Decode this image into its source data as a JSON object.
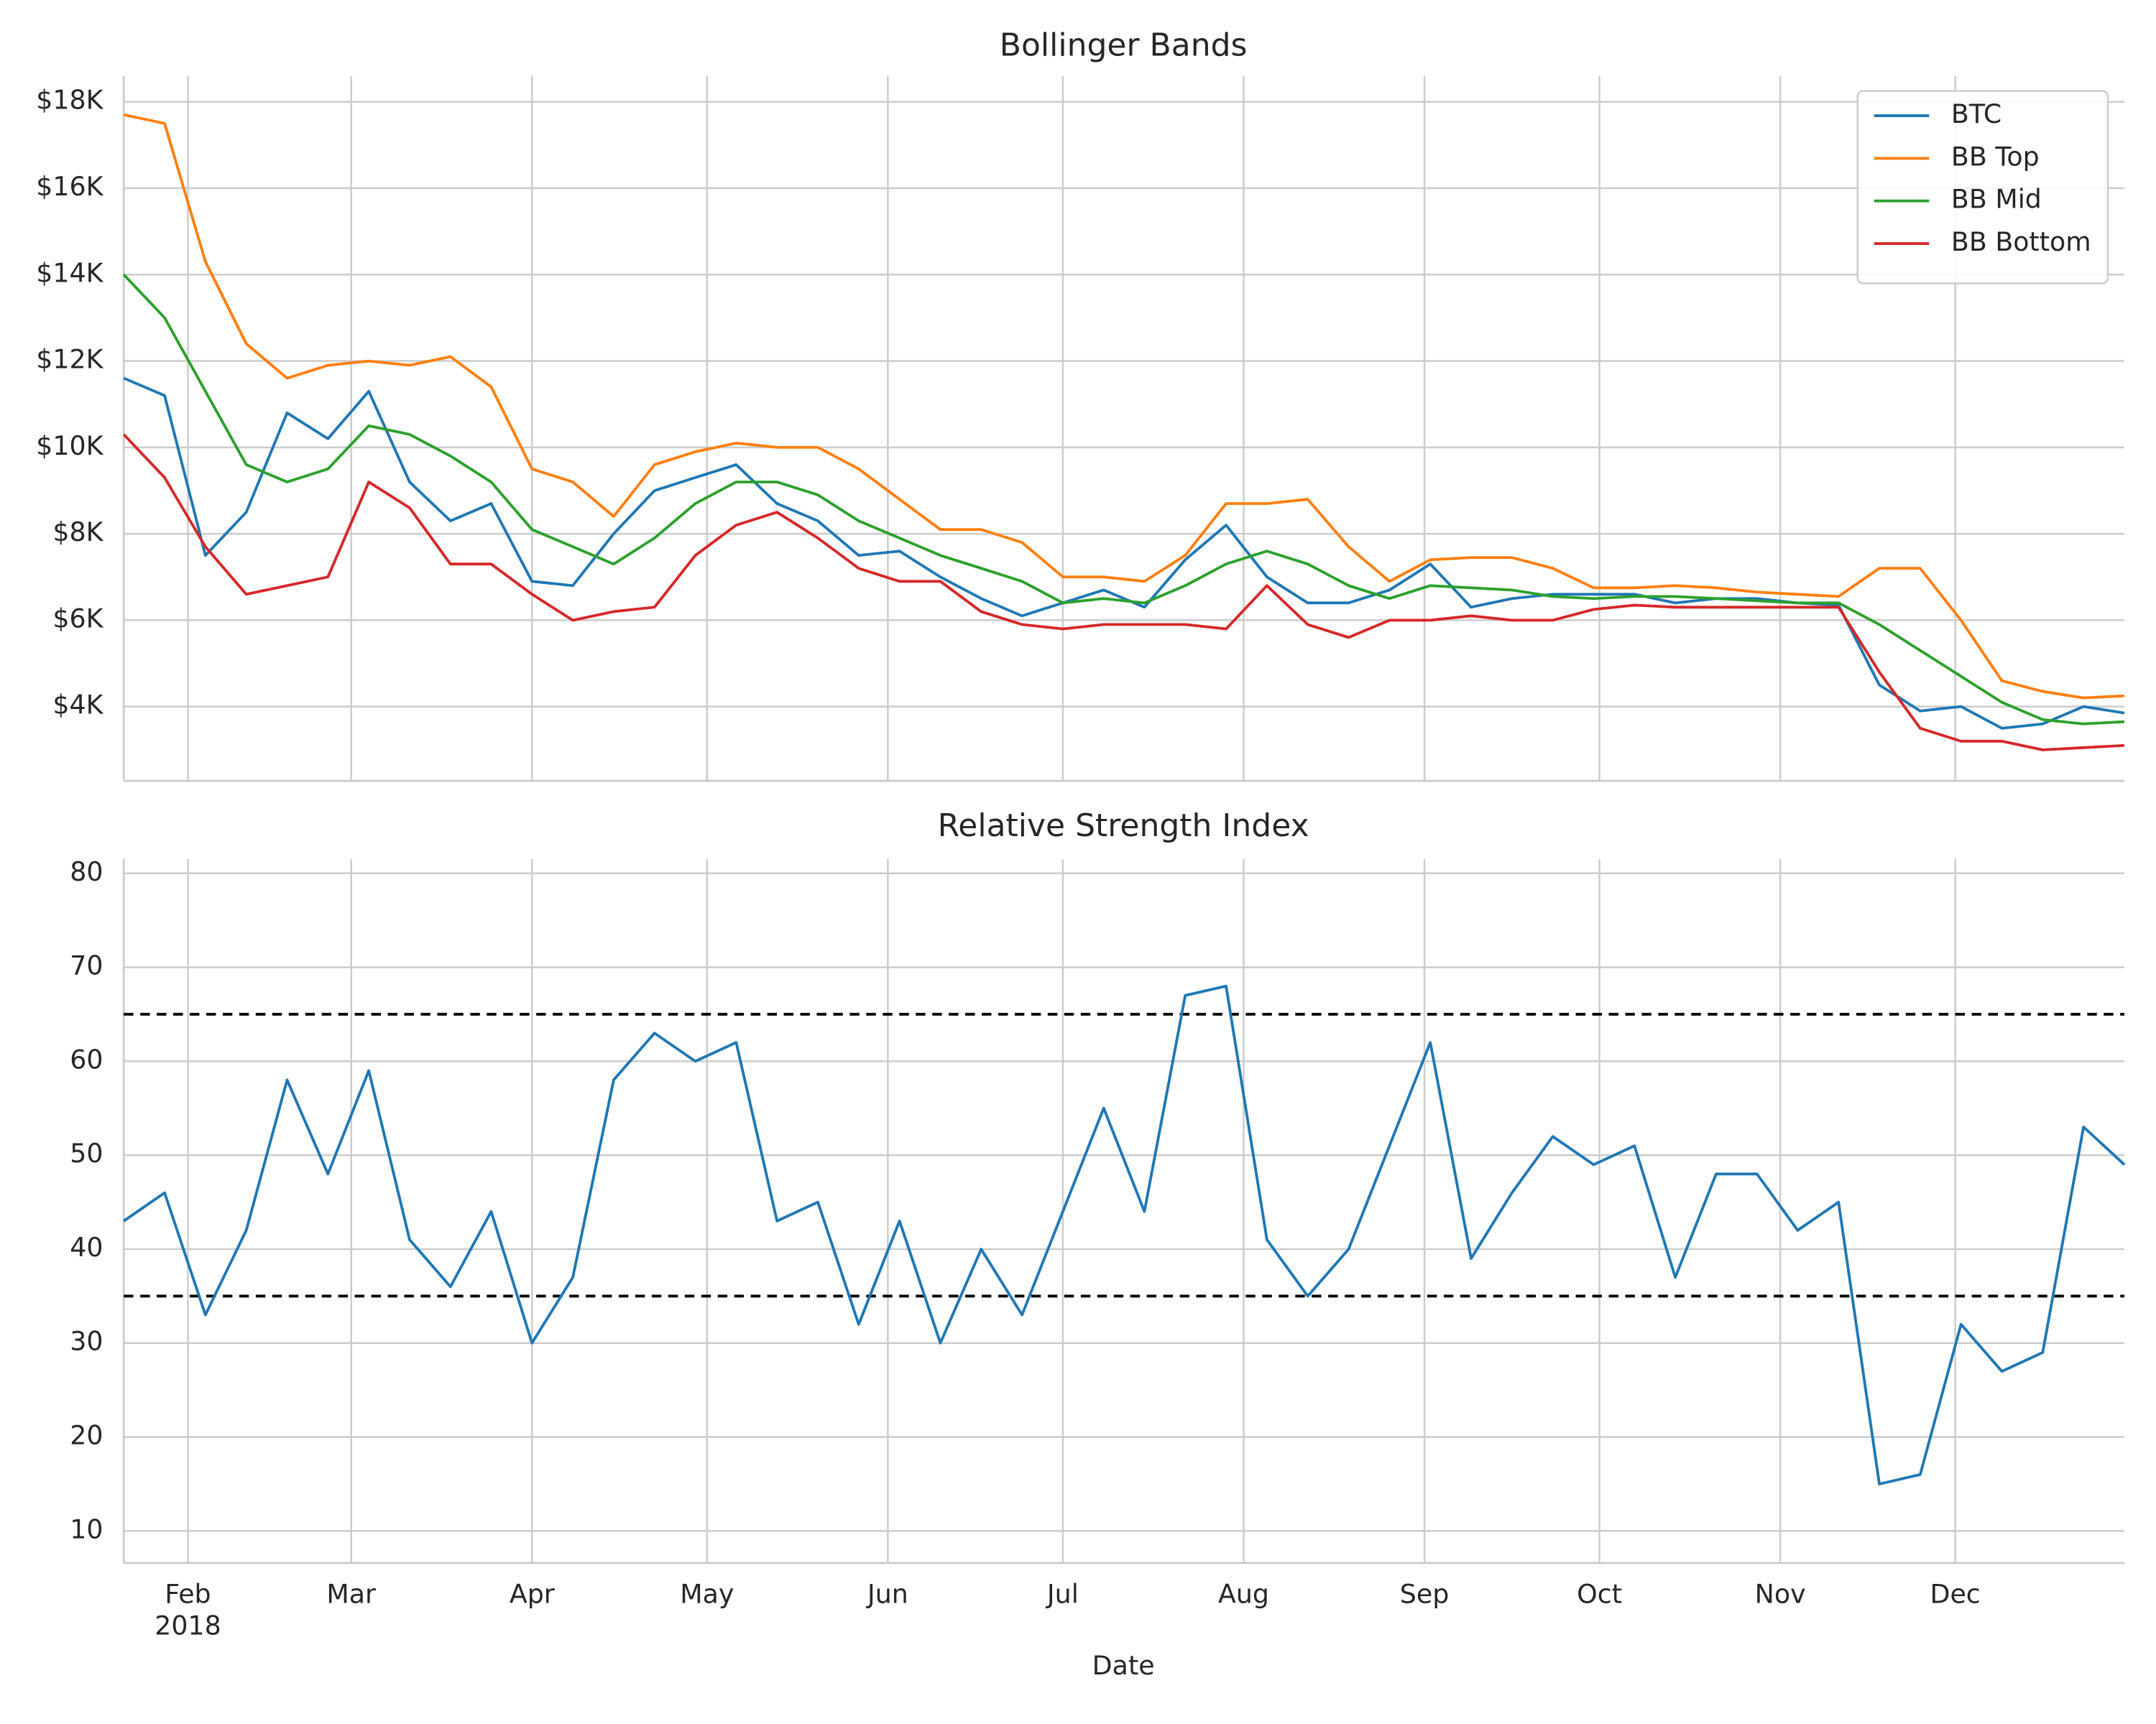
{
  "chart_data": [
    {
      "type": "line",
      "title": "Bollinger Bands",
      "x": [
        21,
        28,
        35,
        42,
        49,
        56,
        63,
        70,
        77,
        84,
        91,
        98,
        105,
        112,
        119,
        126,
        133,
        140,
        147,
        154,
        161,
        168,
        175,
        182,
        189,
        196,
        203,
        210,
        217,
        224,
        231,
        238,
        245,
        252,
        259,
        266,
        273,
        280,
        287,
        294,
        301,
        308,
        315,
        322,
        329,
        336,
        343,
        350,
        357,
        364
      ],
      "xlim": [
        21,
        364
      ],
      "xticks": [
        32,
        60,
        91,
        121,
        152,
        182,
        213,
        244,
        274,
        305,
        335
      ],
      "ylim": [
        2280,
        18600
      ],
      "yticks": [
        {
          "value": 4000,
          "label": "$4K"
        },
        {
          "value": 6000,
          "label": "$6K"
        },
        {
          "value": 8000,
          "label": "$8K"
        },
        {
          "value": 10000,
          "label": "$10K"
        },
        {
          "value": 12000,
          "label": "$12K"
        },
        {
          "value": 14000,
          "label": "$14K"
        },
        {
          "value": 16000,
          "label": "$16K"
        },
        {
          "value": 18000,
          "label": "$18K"
        }
      ],
      "grid": true,
      "legend": "upper right",
      "series": [
        {
          "name": "BTC",
          "color": "#1f77b4",
          "values": [
            11600,
            11200,
            7500,
            8500,
            10800,
            10200,
            11300,
            9200,
            8300,
            8700,
            6900,
            6800,
            8000,
            9000,
            9300,
            9600,
            8700,
            8300,
            7500,
            7600,
            7000,
            6500,
            6100,
            6400,
            6700,
            6300,
            7400,
            8200,
            7000,
            6400,
            6400,
            6700,
            7300,
            6300,
            6500,
            6600,
            6600,
            6600,
            6400,
            6500,
            6500,
            6400,
            6350,
            4500,
            3900,
            4000,
            3500,
            3600,
            4000,
            3850
          ]
        },
        {
          "name": "BB Top",
          "color": "#ff7f0e",
          "values": [
            17700,
            17500,
            14300,
            12400,
            11600,
            11900,
            12000,
            11900,
            12100,
            11400,
            9500,
            9200,
            8400,
            9600,
            9900,
            10100,
            10000,
            10000,
            9500,
            8800,
            8100,
            8100,
            7800,
            7000,
            7000,
            6900,
            7500,
            8700,
            8700,
            8800,
            7700,
            6900,
            7400,
            7450,
            7450,
            7200,
            6750,
            6750,
            6800,
            6750,
            6650,
            6600,
            6550,
            7200,
            7200,
            6000,
            4600,
            4350,
            4200,
            4250
          ]
        },
        {
          "name": "BB Mid",
          "color": "#2ca02c",
          "values": [
            14000,
            13000,
            11300,
            9600,
            9200,
            9500,
            10500,
            10300,
            9800,
            9200,
            8100,
            7700,
            7300,
            7900,
            8700,
            9200,
            9200,
            8900,
            8300,
            7900,
            7500,
            7200,
            6900,
            6400,
            6500,
            6400,
            6800,
            7300,
            7600,
            7300,
            6800,
            6500,
            6800,
            6750,
            6700,
            6550,
            6500,
            6550,
            6550,
            6500,
            6450,
            6400,
            6400,
            5900,
            5300,
            4700,
            4100,
            3700,
            3600,
            3650
          ]
        },
        {
          "name": "BB Bottom",
          "color": "#d62728",
          "values": [
            10300,
            9300,
            7700,
            6600,
            6800,
            7000,
            9200,
            8600,
            7300,
            7300,
            6600,
            6000,
            6200,
            6300,
            7500,
            8200,
            8500,
            7900,
            7200,
            6900,
            6900,
            6200,
            5900,
            5800,
            5900,
            5900,
            5900,
            5800,
            6800,
            5900,
            5600,
            6000,
            6000,
            6100,
            6000,
            6000,
            6250,
            6350,
            6300,
            6300,
            6300,
            6300,
            6300,
            4800,
            3500,
            3200,
            3200,
            3000,
            3050,
            3100
          ]
        }
      ]
    },
    {
      "type": "line",
      "title": "Relative Strength Index",
      "x": [
        21,
        28,
        35,
        42,
        49,
        56,
        63,
        70,
        77,
        84,
        91,
        98,
        105,
        112,
        119,
        126,
        133,
        140,
        147,
        154,
        161,
        168,
        175,
        182,
        189,
        196,
        203,
        210,
        217,
        224,
        231,
        238,
        245,
        252,
        259,
        266,
        273,
        280,
        287,
        294,
        301,
        308,
        315,
        322,
        329,
        336,
        343,
        350,
        357,
        364
      ],
      "xlim": [
        21,
        364
      ],
      "xticks": [
        {
          "value": 32,
          "label": "Feb"
        },
        {
          "value": 60,
          "label": "Mar"
        },
        {
          "value": 91,
          "label": "Apr"
        },
        {
          "value": 121,
          "label": "May"
        },
        {
          "value": 152,
          "label": "Jun"
        },
        {
          "value": 182,
          "label": "Jul"
        },
        {
          "value": 213,
          "label": "Aug"
        },
        {
          "value": 244,
          "label": "Sep"
        },
        {
          "value": 274,
          "label": "Oct"
        },
        {
          "value": 305,
          "label": "Nov"
        },
        {
          "value": 335,
          "label": "Dec"
        }
      ],
      "xtick_sublabel": "2018",
      "xlabel": "Date",
      "ylim": [
        6.6,
        81.5
      ],
      "yticks": [
        10,
        20,
        30,
        40,
        50,
        60,
        70,
        80
      ],
      "grid": true,
      "thresholds": [
        65,
        35
      ],
      "threshold_color": "#000000",
      "series": [
        {
          "color": "#1f77b4",
          "values": [
            43,
            46,
            33,
            42,
            58,
            48,
            59,
            41,
            36,
            44,
            30,
            37,
            58,
            63,
            60,
            62,
            43,
            45,
            32,
            43,
            30,
            40,
            33,
            44,
            55,
            44,
            67,
            68,
            41,
            35,
            40,
            51,
            62,
            39,
            46,
            52,
            49,
            51,
            37,
            48,
            48,
            42,
            45,
            15,
            16,
            32,
            27,
            29,
            53,
            49
          ]
        }
      ]
    }
  ]
}
